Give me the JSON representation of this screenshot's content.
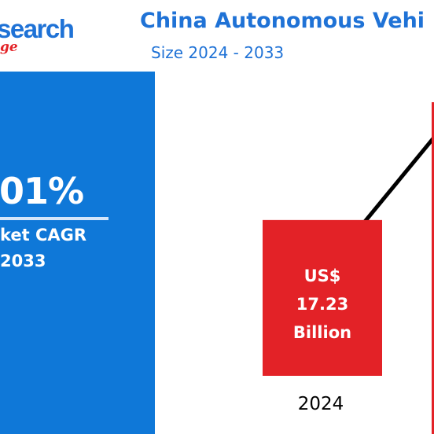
{
  "logo": {
    "main": "search",
    "sub": "ge"
  },
  "title": "China Autonomous Vehi",
  "subtitle": "Size 2024 - 2033",
  "cagr": {
    "value": "01%",
    "label": "ket CAGR",
    "period": "2033"
  },
  "chart_data": {
    "type": "bar",
    "categories": [
      "2024"
    ],
    "values": [
      17.23
    ],
    "data_labels": [
      [
        "US$",
        "17.23",
        "Billion"
      ]
    ],
    "bar_color": "#e32227",
    "trend_line_color": "#000000",
    "grid": false
  }
}
